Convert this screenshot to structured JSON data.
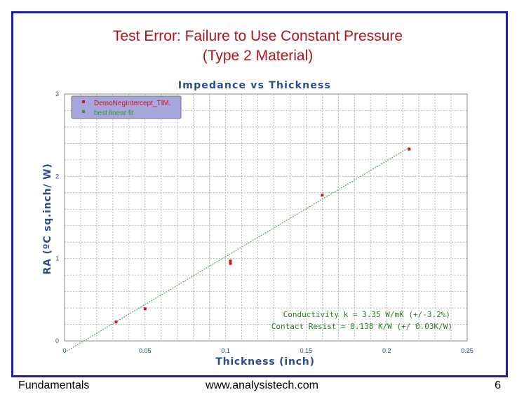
{
  "slide": {
    "title_line1": "Test Error:  Failure to Use Constant Pressure",
    "title_line2": "(Type 2 Material)",
    "footer_left": "Fundamentals",
    "footer_center": "www.analysistech.com",
    "footer_right": "6"
  },
  "colors": {
    "frame": "#1f1fa8",
    "title": "#b0141c",
    "chart_text": "#2a4d8f",
    "data_points": "#cc1a1a",
    "fit_line": "#3a9a3a",
    "legend_bg": "#a6a6dc",
    "annotation": "#2b7b2b"
  },
  "chart_data": {
    "type": "scatter",
    "title": "Impedance vs Thickness",
    "xlabel": "Thickness (inch)",
    "ylabel": "RA (ºC sq.inch/ W)",
    "xlim": [
      0,
      0.25
    ],
    "ylim": [
      0,
      3
    ],
    "x_ticks": [
      0,
      0.05,
      0.1,
      0.15,
      0.2,
      0.25
    ],
    "x_tick_labels": [
      "0",
      "0.05",
      "0.1",
      "0.15",
      "0.2",
      "0.25"
    ],
    "y_ticks": [
      0,
      1,
      2,
      3
    ],
    "y_tick_labels": [
      "0",
      "1",
      "2",
      "3"
    ],
    "grid": true,
    "legend_position": "top-left",
    "series": [
      {
        "name": "DemoNegIntercept_TIM.",
        "kind": "points",
        "x": [
          0.032,
          0.05,
          0.103,
          0.103,
          0.16,
          0.214
        ],
        "y": [
          0.23,
          0.39,
          0.94,
          0.97,
          1.77,
          2.33
        ]
      },
      {
        "name": "best linear fit",
        "kind": "line",
        "x": [
          0,
          0.214
        ],
        "y": [
          -0.14,
          2.35
        ]
      }
    ],
    "annotations": [
      "Conductivity k = 3.35 W/mK (+/-3.2%)",
      "Contact Resist =  0.138 K/W (+/ 0.03K/W)"
    ]
  }
}
